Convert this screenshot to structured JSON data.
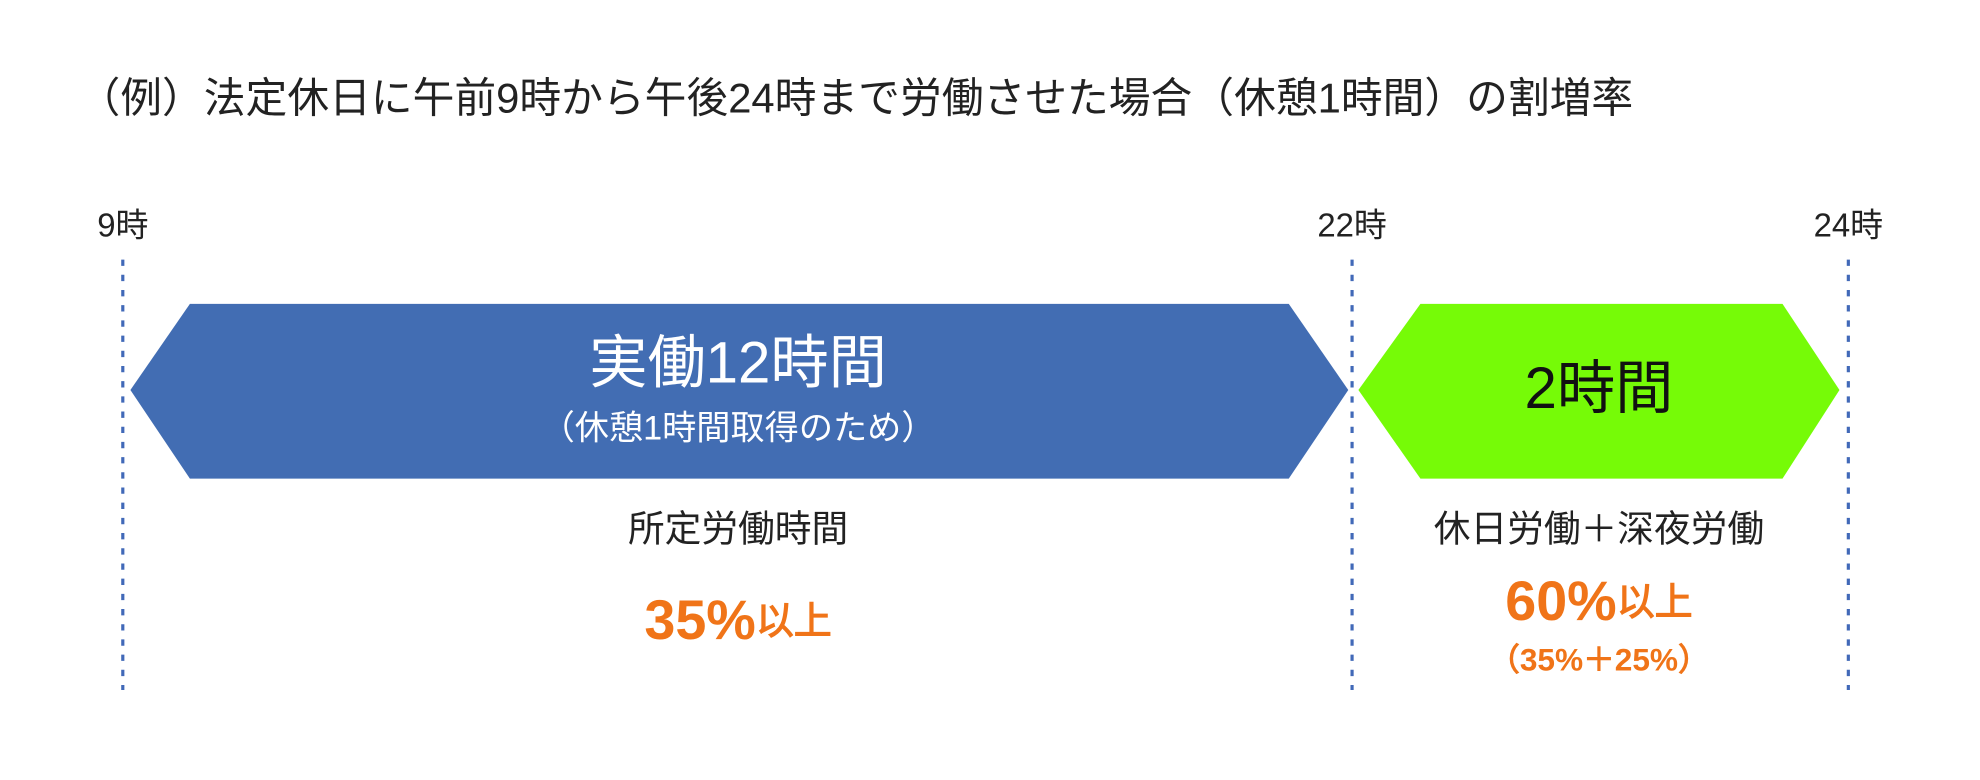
{
  "title": "（例）法定休日に午前9時から午後24時まで労働させた場合（休憩1時間）の割増率",
  "time_markers": [
    "9時",
    "22時",
    "24時"
  ],
  "segments": [
    {
      "label": "実働12時間",
      "sublabel": "（休憩1時間取得のため）",
      "category": "所定労働時間",
      "rate": "35%",
      "rate_suffix": "以上"
    },
    {
      "label": "2時間",
      "category": "休日労働＋深夜労働",
      "rate": "60%",
      "rate_suffix": "以上",
      "rate_note": "（35%＋25%）"
    }
  ]
}
